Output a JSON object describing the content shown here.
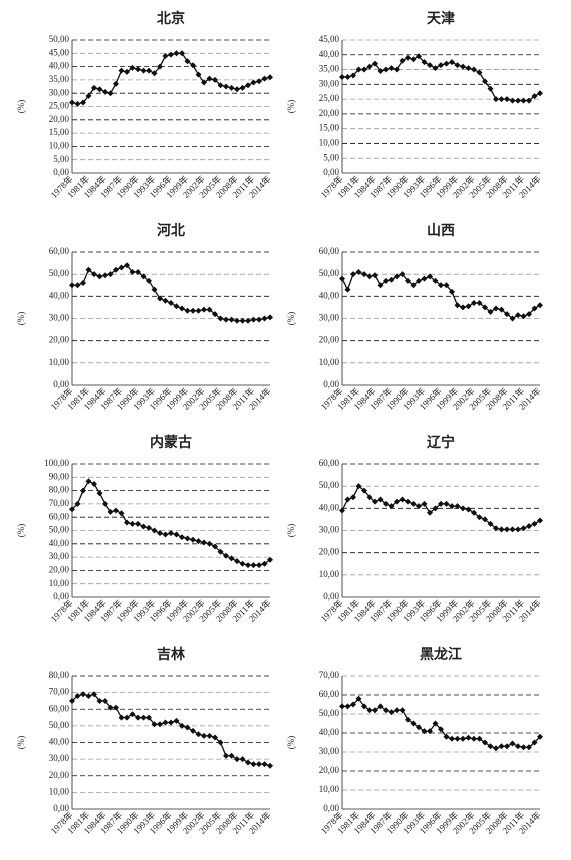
{
  "chart_data": [
    {
      "type": "line",
      "title": "北京",
      "ylabel": "(%)",
      "color": "#111111",
      "grid": true,
      "categories": [
        "1978年",
        null,
        null,
        "1981年",
        null,
        null,
        "1984年",
        null,
        null,
        "1987年",
        null,
        null,
        "1990年",
        null,
        null,
        "1993年",
        null,
        null,
        "1996年",
        null,
        null,
        "1999年",
        null,
        null,
        "2002年",
        null,
        null,
        "2005年",
        null,
        null,
        "2008年",
        null,
        null,
        "2011年",
        null,
        null,
        "2014年"
      ],
      "values": [
        26.5,
        26,
        26.5,
        29,
        32,
        31.5,
        30.5,
        30,
        33.5,
        38.5,
        38,
        39.5,
        39,
        38.5,
        38.5,
        37.5,
        40,
        44,
        44.5,
        45,
        45,
        42,
        40.5,
        37,
        34,
        35.5,
        35,
        33,
        32.5,
        32,
        31.5,
        32,
        33,
        34,
        34.5,
        35.5,
        36
      ],
      "ylim": [
        0,
        50
      ],
      "yticks": [
        {
          "value": 0,
          "label": "0,00"
        },
        {
          "value": 5,
          "label": "5,00"
        },
        {
          "value": 10,
          "label": "10,00"
        },
        {
          "value": 15,
          "label": "15,00"
        },
        {
          "value": 20,
          "label": "20,00"
        },
        {
          "value": 25,
          "label": "25,00"
        },
        {
          "value": 30,
          "label": "30,00"
        },
        {
          "value": 35,
          "label": "35,00"
        },
        {
          "value": 40,
          "label": "40,00"
        },
        {
          "value": 45,
          "label": "45,00"
        },
        {
          "value": 50,
          "label": "50,00"
        }
      ]
    },
    {
      "type": "line",
      "title": "天津",
      "ylabel": "(%)",
      "color": "#111111",
      "grid": true,
      "categories": [
        "1978年",
        null,
        null,
        "1981年",
        null,
        null,
        "1984年",
        null,
        null,
        "1987年",
        null,
        null,
        "1990年",
        null,
        null,
        "1993年",
        null,
        null,
        "1996年",
        null,
        null,
        "1999年",
        null,
        null,
        "2002年",
        null,
        null,
        "2005年",
        null,
        null,
        "2008年",
        null,
        null,
        "2011年",
        null,
        null,
        "2014年"
      ],
      "values": [
        32.5,
        32.5,
        33,
        35,
        35,
        36,
        37,
        34.5,
        35,
        35.5,
        35,
        38,
        39,
        38.5,
        39.5,
        37.5,
        36.5,
        35.5,
        36.5,
        37,
        37.5,
        36.5,
        36,
        35.5,
        35,
        34,
        31,
        28.5,
        25,
        25,
        25,
        24.5,
        24.5,
        24.5,
        24.5,
        26,
        27
      ],
      "ylim": [
        0,
        45
      ],
      "yticks": [
        {
          "value": 0,
          "label": "0,00"
        },
        {
          "value": 5,
          "label": "5,00"
        },
        {
          "value": 10,
          "label": "10,00"
        },
        {
          "value": 15,
          "label": "15,00"
        },
        {
          "value": 20,
          "label": "20,00"
        },
        {
          "value": 25,
          "label": "25,00"
        },
        {
          "value": 30,
          "label": "30,00"
        },
        {
          "value": 35,
          "label": "35,00"
        },
        {
          "value": 40,
          "label": "40,00"
        },
        {
          "value": 45,
          "label": "45,00"
        }
      ]
    },
    {
      "type": "line",
      "title": "河北",
      "ylabel": "(%)",
      "color": "#111111",
      "grid": true,
      "categories": [
        "1978年",
        null,
        null,
        "1981年",
        null,
        null,
        "1984年",
        null,
        null,
        "1987年",
        null,
        null,
        "1990年",
        null,
        null,
        "1993年",
        null,
        null,
        "1996年",
        null,
        null,
        "1999年",
        null,
        null,
        "2002年",
        null,
        null,
        "2005年",
        null,
        null,
        "2008年",
        null,
        null,
        "2011年",
        null,
        null,
        "2014年"
      ],
      "values": [
        45,
        45,
        46,
        52,
        50,
        49,
        49.5,
        50,
        52,
        53,
        54,
        51,
        51,
        49,
        47,
        43,
        39,
        38,
        37,
        35.5,
        34.5,
        33.5,
        33.5,
        33.5,
        34,
        34,
        32,
        30,
        29.5,
        29.5,
        29,
        29,
        29,
        29.5,
        29.5,
        30,
        30.5
      ],
      "ylim": [
        0,
        60
      ],
      "yticks": [
        {
          "value": 0,
          "label": "0,00"
        },
        {
          "value": 10,
          "label": "10,00"
        },
        {
          "value": 20,
          "label": "20,00"
        },
        {
          "value": 30,
          "label": "30,00"
        },
        {
          "value": 40,
          "label": "40,00"
        },
        {
          "value": 50,
          "label": "50,00"
        },
        {
          "value": 60,
          "label": "60,00"
        }
      ]
    },
    {
      "type": "line",
      "title": "山西",
      "ylabel": "(%)",
      "color": "#111111",
      "grid": true,
      "categories": [
        "1978年",
        null,
        null,
        "1981年",
        null,
        null,
        "1984年",
        null,
        null,
        "1987年",
        null,
        null,
        "1990年",
        null,
        null,
        "1993年",
        null,
        null,
        "1996年",
        null,
        null,
        "1999年",
        null,
        null,
        "2002年",
        null,
        null,
        "2005年",
        null,
        null,
        "2008年",
        null,
        null,
        "2011年",
        null,
        null,
        "2014年"
      ],
      "values": [
        48,
        43,
        50,
        51,
        50,
        49,
        49.5,
        45,
        47,
        47.5,
        49,
        50,
        47,
        45,
        47,
        48,
        49,
        47,
        45,
        45,
        42,
        36,
        35,
        35.5,
        37,
        37,
        35,
        33,
        34.5,
        34,
        32,
        30,
        31.5,
        31,
        32,
        34.5,
        36
      ],
      "ylim": [
        0,
        60
      ],
      "yticks": [
        {
          "value": 0,
          "label": "0,00"
        },
        {
          "value": 10,
          "label": "10,00"
        },
        {
          "value": 20,
          "label": "20,00"
        },
        {
          "value": 30,
          "label": "30,00"
        },
        {
          "value": 40,
          "label": "40,00"
        },
        {
          "value": 50,
          "label": "50,00"
        },
        {
          "value": 60,
          "label": "60,00"
        }
      ]
    },
    {
      "type": "line",
      "title": "内蒙古",
      "ylabel": "(%)",
      "color": "#111111",
      "grid": true,
      "categories": [
        "1978年",
        null,
        null,
        "1981年",
        null,
        null,
        "1984年",
        null,
        null,
        "1987年",
        null,
        null,
        "1990年",
        null,
        null,
        "1993年",
        null,
        null,
        "1996年",
        null,
        null,
        "1999年",
        null,
        null,
        "2002年",
        null,
        null,
        "2005年",
        null,
        null,
        "2008年",
        null,
        null,
        "2011年",
        null,
        null,
        "2014年"
      ],
      "values": [
        66,
        70,
        80,
        87,
        85,
        78,
        70,
        64,
        65,
        63,
        56,
        55,
        55,
        53,
        52,
        50,
        48,
        47,
        48,
        47,
        45,
        44,
        43,
        42,
        41,
        40,
        38,
        34,
        31,
        29,
        27,
        25,
        24,
        24,
        24,
        25,
        28
      ],
      "ylim": [
        0,
        100
      ],
      "yticks": [
        {
          "value": 0,
          "label": "0,00"
        },
        {
          "value": 10,
          "label": "10,00"
        },
        {
          "value": 20,
          "label": "20,00"
        },
        {
          "value": 30,
          "label": "30,00"
        },
        {
          "value": 40,
          "label": "40,00"
        },
        {
          "value": 50,
          "label": "50,00"
        },
        {
          "value": 60,
          "label": "60,00"
        },
        {
          "value": 70,
          "label": "70,00"
        },
        {
          "value": 80,
          "label": "80,00"
        },
        {
          "value": 90,
          "label": "90,00"
        },
        {
          "value": 100,
          "label": "100,00"
        }
      ]
    },
    {
      "type": "line",
      "title": "辽宁",
      "ylabel": "(%)",
      "color": "#111111",
      "grid": true,
      "categories": [
        "1978年",
        null,
        null,
        "1981年",
        null,
        null,
        "1984年",
        null,
        null,
        "1987年",
        null,
        null,
        "1990年",
        null,
        null,
        "1993年",
        null,
        null,
        "1996年",
        null,
        null,
        "1999年",
        null,
        null,
        "2002年",
        null,
        null,
        "2005年",
        null,
        null,
        "2008年",
        null,
        null,
        "2011年",
        null,
        null,
        "2014年"
      ],
      "values": [
        39,
        44,
        45,
        50,
        48,
        45,
        43,
        44,
        42,
        41,
        43,
        44,
        43,
        42,
        41,
        42,
        38,
        40,
        42,
        42,
        41,
        41,
        40,
        39.5,
        38,
        36,
        35,
        33,
        31,
        30.5,
        30.5,
        30.5,
        30.5,
        31,
        32,
        33,
        34.5
      ],
      "ylim": [
        0,
        60
      ],
      "yticks": [
        {
          "value": 0,
          "label": "0,00"
        },
        {
          "value": 10,
          "label": "10,00"
        },
        {
          "value": 20,
          "label": "20,00"
        },
        {
          "value": 30,
          "label": "30,00"
        },
        {
          "value": 40,
          "label": "40,00"
        },
        {
          "value": 50,
          "label": "50,00"
        },
        {
          "value": 60,
          "label": "60,00"
        }
      ]
    },
    {
      "type": "line",
      "title": "吉林",
      "ylabel": "(%)",
      "color": "#111111",
      "grid": true,
      "categories": [
        "1978年",
        null,
        null,
        "1981年",
        null,
        null,
        "1984年",
        null,
        null,
        "1987年",
        null,
        null,
        "1990年",
        null,
        null,
        "1993年",
        null,
        null,
        "1996年",
        null,
        null,
        "1999年",
        null,
        null,
        "2002年",
        null,
        null,
        "2005年",
        null,
        null,
        "2008年",
        null,
        null,
        "2011年",
        null,
        null,
        "2014年"
      ],
      "values": [
        65,
        68,
        69,
        68,
        69,
        65,
        65,
        61,
        61,
        55,
        55,
        57,
        55,
        55,
        55,
        51,
        51,
        52,
        52,
        53,
        50,
        49,
        47,
        45,
        44,
        44,
        43,
        40,
        32,
        32,
        30,
        30,
        28,
        27,
        27,
        27,
        26
      ],
      "ylim": [
        0,
        80
      ],
      "yticks": [
        {
          "value": 0,
          "label": "0,00"
        },
        {
          "value": 10,
          "label": "10,00"
        },
        {
          "value": 20,
          "label": "20,00"
        },
        {
          "value": 30,
          "label": "30,00"
        },
        {
          "value": 40,
          "label": "40,00"
        },
        {
          "value": 50,
          "label": "50,00"
        },
        {
          "value": 60,
          "label": "60,00"
        },
        {
          "value": 70,
          "label": "70,00"
        },
        {
          "value": 80,
          "label": "80,00"
        }
      ]
    },
    {
      "type": "line",
      "title": "黑龙江",
      "ylabel": "(%)",
      "color": "#111111",
      "grid": true,
      "categories": [
        "1978年",
        null,
        null,
        "1981年",
        null,
        null,
        "1984年",
        null,
        null,
        "1987年",
        null,
        null,
        "1990年",
        null,
        null,
        "1993年",
        null,
        null,
        "1996年",
        null,
        null,
        "1999年",
        null,
        null,
        "2002年",
        null,
        null,
        "2005年",
        null,
        null,
        "2008年",
        null,
        null,
        "2011年",
        null,
        null,
        "2014年"
      ],
      "values": [
        54,
        54,
        55,
        58,
        54,
        52,
        52,
        54,
        52,
        51,
        52,
        52,
        47,
        45,
        43,
        41,
        41,
        45,
        42,
        38,
        37,
        37,
        37,
        37.5,
        37,
        37,
        35,
        33,
        32,
        33,
        33,
        34.5,
        33,
        32.5,
        32.5,
        35,
        38
      ],
      "ylim": [
        0,
        70
      ],
      "yticks": [
        {
          "value": 0,
          "label": "0,00"
        },
        {
          "value": 10,
          "label": "10,00"
        },
        {
          "value": 20,
          "label": "20,00"
        },
        {
          "value": 30,
          "label": "30,00"
        },
        {
          "value": 40,
          "label": "40,00"
        },
        {
          "value": 50,
          "label": "50,00"
        },
        {
          "value": 60,
          "label": "60,00"
        },
        {
          "value": 70,
          "label": "70,00"
        }
      ]
    }
  ]
}
